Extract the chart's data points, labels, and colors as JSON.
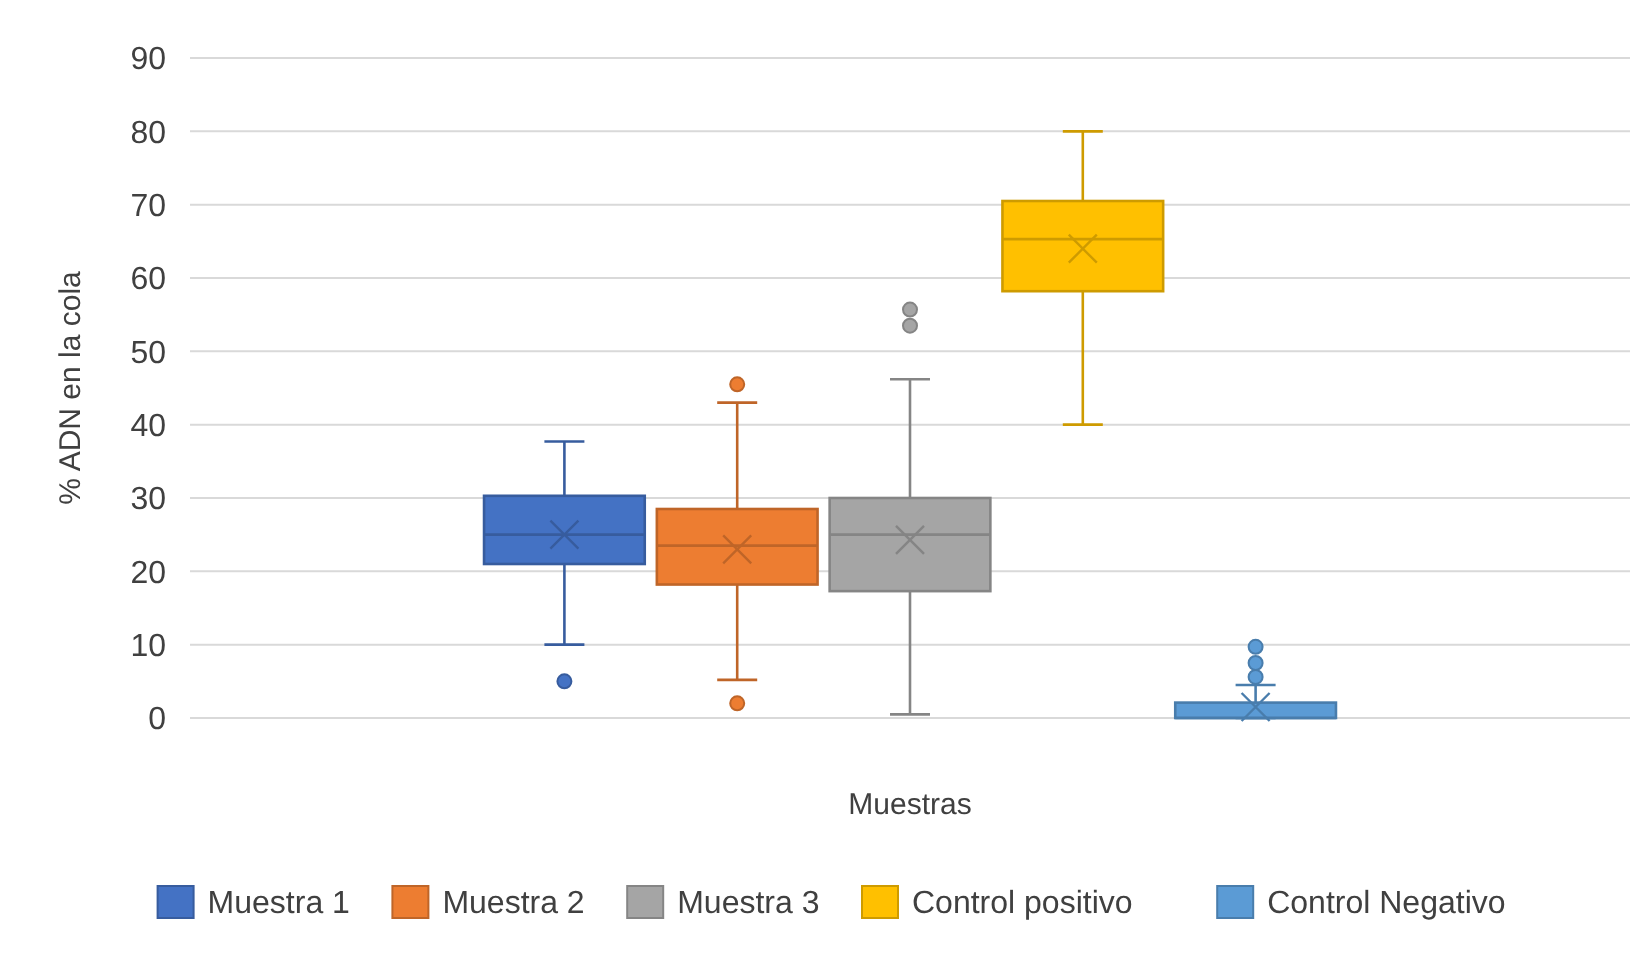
{
  "chart_data": {
    "type": "box",
    "xlabel": "Muestras",
    "ylabel": "% ADN en la cola",
    "categories": [
      null
    ],
    "ylim": [
      0,
      90
    ],
    "yticks": [
      0,
      10,
      20,
      30,
      40,
      50,
      60,
      70,
      80,
      90
    ],
    "grid": "y",
    "legend": "bottom",
    "series": [
      {
        "name": "Muestra 1",
        "color": "#4472c4",
        "boxes": [
          {
            "low": 10,
            "q1": 21,
            "median": 25,
            "q3": 30.3,
            "high": 37.7,
            "mean": 25,
            "outliers": [
              5
            ]
          }
        ]
      },
      {
        "name": "Muestra 2",
        "color": "#ed7d31",
        "boxes": [
          {
            "low": 5.2,
            "q1": 18.2,
            "median": 23.5,
            "q3": 28.5,
            "high": 43,
            "mean": 23,
            "outliers": [
              45.5,
              2
            ]
          }
        ]
      },
      {
        "name": "Muestra 3",
        "color": "#a5a5a5",
        "boxes": [
          {
            "low": 0.5,
            "q1": 17.3,
            "median": 25,
            "q3": 30,
            "high": 46.2,
            "mean": 24.3,
            "outliers": [
              53.5,
              55.7
            ]
          }
        ]
      },
      {
        "name": "Control positivo",
        "color": "#ffc000",
        "boxes": [
          {
            "low": 40,
            "q1": 58.2,
            "median": 65.3,
            "q3": 70.5,
            "high": 80,
            "mean": 64
          }
        ]
      },
      {
        "name": "Control Negativo",
        "color": "#5b9bd5",
        "boxes": [
          {
            "low": 0,
            "q1": 0,
            "median": 0,
            "q3": 2.1,
            "high": 4.5,
            "mean": 1.5,
            "outliers": [
              5.6,
              7.5,
              9.7
            ]
          }
        ]
      }
    ]
  }
}
